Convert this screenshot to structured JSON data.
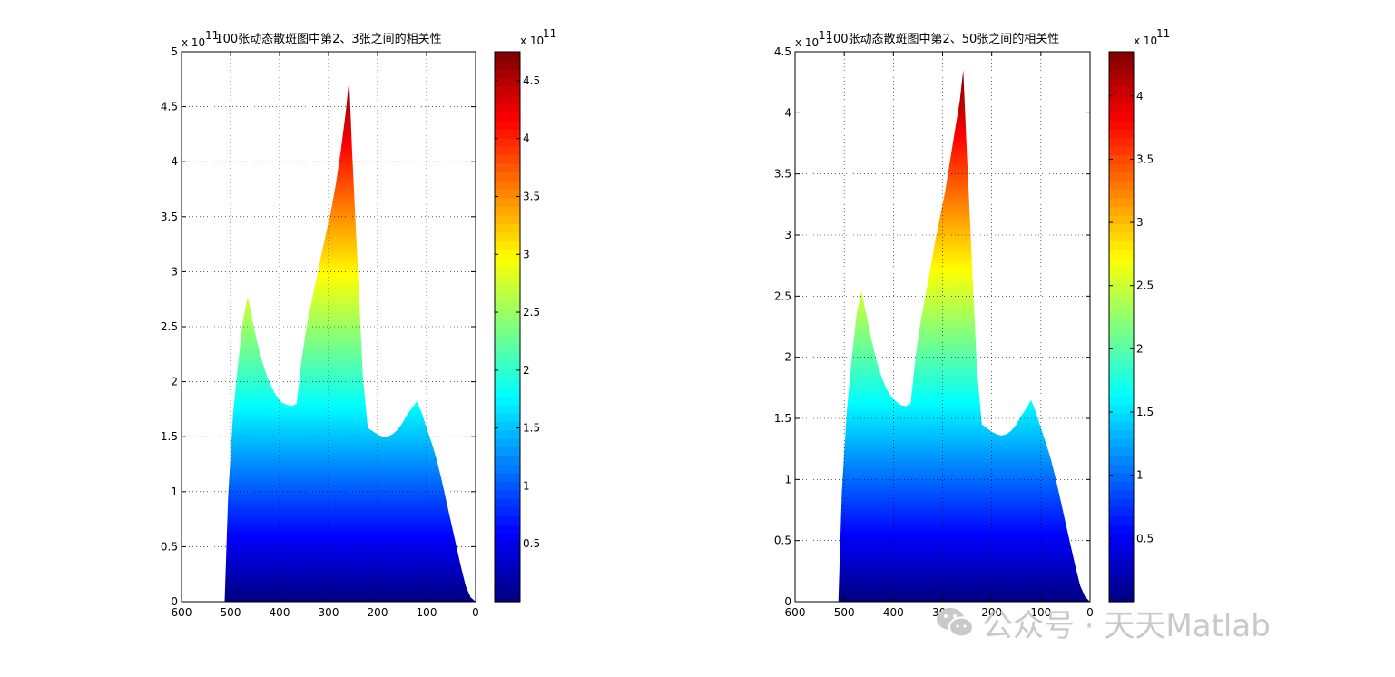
{
  "chart_data": [
    {
      "type": "area",
      "title": "100张动态散斑图中第2、3张之间的相关性",
      "xlabel": "",
      "ylabel": "",
      "xlim": [
        600,
        0
      ],
      "x_reversed": true,
      "ylim": [
        0,
        5
      ],
      "y_exponent": "x 10",
      "y_exponent_power": "11",
      "grid": true,
      "x_ticks": [
        "600",
        "500",
        "400",
        "300",
        "200",
        "100",
        "0"
      ],
      "y_ticks": [
        "0",
        "0.5",
        "1",
        "1.5",
        "2",
        "2.5",
        "3",
        "3.5",
        "4",
        "4.5",
        "5"
      ],
      "colormap": "jet",
      "colorbar": {
        "clim": [
          0,
          4.75
        ],
        "ticks": [
          "0.5",
          "1",
          "1.5",
          "2",
          "2.5",
          "3",
          "3.5",
          "4",
          "4.5"
        ],
        "exponent": "x 10",
        "exponent_power": "11"
      },
      "series": [
        {
          "x": [
            512,
            505,
            495,
            485,
            475,
            465,
            455,
            445,
            435,
            425,
            415,
            405,
            395,
            385,
            375,
            365,
            355,
            345,
            335,
            325,
            315,
            305,
            295,
            285,
            275,
            265,
            258,
            252,
            240,
            230,
            220,
            210,
            200,
            190,
            180,
            170,
            160,
            150,
            140,
            130,
            120,
            110,
            100,
            90,
            80,
            70,
            60,
            50,
            40,
            30,
            20,
            10,
            0
          ],
          "y": [
            0,
            0.95,
            1.7,
            2.15,
            2.55,
            2.77,
            2.55,
            2.35,
            2.18,
            2.04,
            1.94,
            1.86,
            1.81,
            1.79,
            1.78,
            1.8,
            2.2,
            2.5,
            2.72,
            2.93,
            3.15,
            3.35,
            3.55,
            3.8,
            4.1,
            4.45,
            4.75,
            4.1,
            3.0,
            2.05,
            1.58,
            1.55,
            1.52,
            1.5,
            1.5,
            1.52,
            1.56,
            1.62,
            1.7,
            1.76,
            1.82,
            1.72,
            1.58,
            1.45,
            1.3,
            1.12,
            0.92,
            0.72,
            0.52,
            0.32,
            0.14,
            0.04,
            0
          ]
        }
      ]
    },
    {
      "type": "area",
      "title": "100张动态散斑图中第2、50张之间的相关性",
      "xlabel": "",
      "ylabel": "",
      "xlim": [
        600,
        0
      ],
      "x_reversed": true,
      "ylim": [
        0,
        4.5
      ],
      "y_exponent": "x 10",
      "y_exponent_power": "11",
      "grid": true,
      "x_ticks": [
        "600",
        "500",
        "400",
        "300",
        "200",
        "100",
        "0"
      ],
      "y_ticks": [
        "0",
        "0.5",
        "1",
        "1.5",
        "2",
        "2.5",
        "3",
        "3.5",
        "4",
        "4.5"
      ],
      "colormap": "jet",
      "colorbar": {
        "clim": [
          0,
          4.35
        ],
        "ticks": [
          "0.5",
          "1",
          "1.5",
          "2",
          "2.5",
          "3",
          "3.5",
          "4"
        ],
        "exponent": "x 10",
        "exponent_power": "11"
      },
      "series": [
        {
          "x": [
            512,
            505,
            495,
            485,
            475,
            465,
            455,
            445,
            435,
            425,
            415,
            405,
            395,
            385,
            375,
            365,
            355,
            345,
            335,
            325,
            315,
            305,
            295,
            285,
            275,
            265,
            258,
            252,
            240,
            230,
            220,
            210,
            200,
            190,
            180,
            170,
            160,
            150,
            140,
            130,
            120,
            110,
            100,
            90,
            80,
            70,
            60,
            50,
            40,
            30,
            20,
            10,
            0
          ],
          "y": [
            0,
            0.9,
            1.55,
            1.98,
            2.35,
            2.54,
            2.35,
            2.15,
            1.98,
            1.85,
            1.75,
            1.68,
            1.64,
            1.61,
            1.6,
            1.62,
            2.0,
            2.28,
            2.5,
            2.72,
            2.95,
            3.15,
            3.35,
            3.6,
            3.85,
            4.1,
            4.35,
            3.8,
            2.75,
            1.9,
            1.45,
            1.42,
            1.39,
            1.37,
            1.36,
            1.37,
            1.4,
            1.45,
            1.52,
            1.58,
            1.65,
            1.55,
            1.42,
            1.3,
            1.17,
            1.01,
            0.83,
            0.65,
            0.47,
            0.29,
            0.13,
            0.04,
            0
          ]
        }
      ]
    }
  ],
  "watermark": {
    "text": "公众号 · 天天Matlab",
    "icon": "wechat-icon",
    "color": "#c9c9c9"
  }
}
